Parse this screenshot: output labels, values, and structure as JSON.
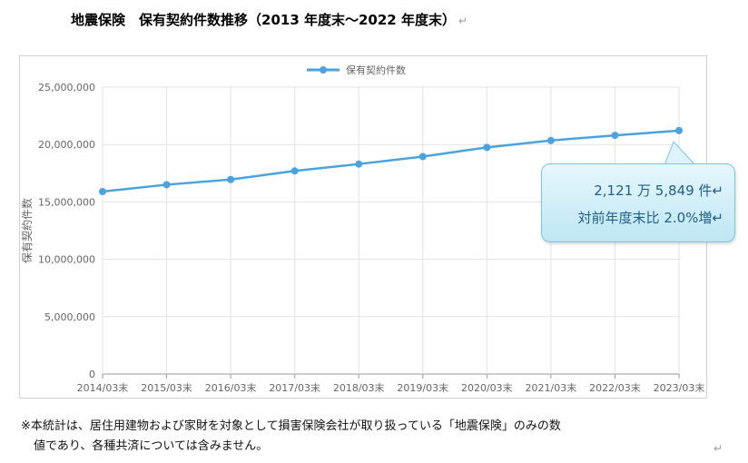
{
  "page": {
    "title": "地震保険　保有契約件数推移（2013 年度末～2022 年度末）",
    "para_mark": "↵"
  },
  "chart_data": {
    "type": "line",
    "title": "",
    "xlabel": "",
    "ylabel": "保有契約件数",
    "legend": {
      "position": "top-center",
      "entries": [
        "保有契約件数"
      ]
    },
    "ylim": [
      0,
      25000000
    ],
    "y_ticks": [
      "0",
      "5,000,000",
      "10,000,000",
      "15,000,000",
      "20,000,000",
      "25,000,000"
    ],
    "y_tick_values": [
      0,
      5000000,
      10000000,
      15000000,
      20000000,
      25000000
    ],
    "grid": true,
    "categories": [
      "2014/03末",
      "2015/03末",
      "2016/03末",
      "2017/03末",
      "2018/03末",
      "2019/03末",
      "2020/03末",
      "2021/03末",
      "2022/03末",
      "2023/03末"
    ],
    "series": [
      {
        "name": "保有契約件数",
        "color": "#4aa3df",
        "values": [
          15900000,
          16500000,
          16950000,
          17700000,
          18300000,
          18950000,
          19750000,
          20350000,
          20800000,
          21215849
        ]
      }
    ],
    "annotation": {
      "line1": "2,121 万 5,849 件↵",
      "line2": "対前年度末比 2.0%増↵"
    }
  },
  "footnote": {
    "line1": "※本統計は、居住用建物および家財を対象として損害保険会社が取り扱っている「地震保険」のみの数",
    "line2": "値であり、各種共済については含みません。",
    "para_mark": "↵"
  }
}
